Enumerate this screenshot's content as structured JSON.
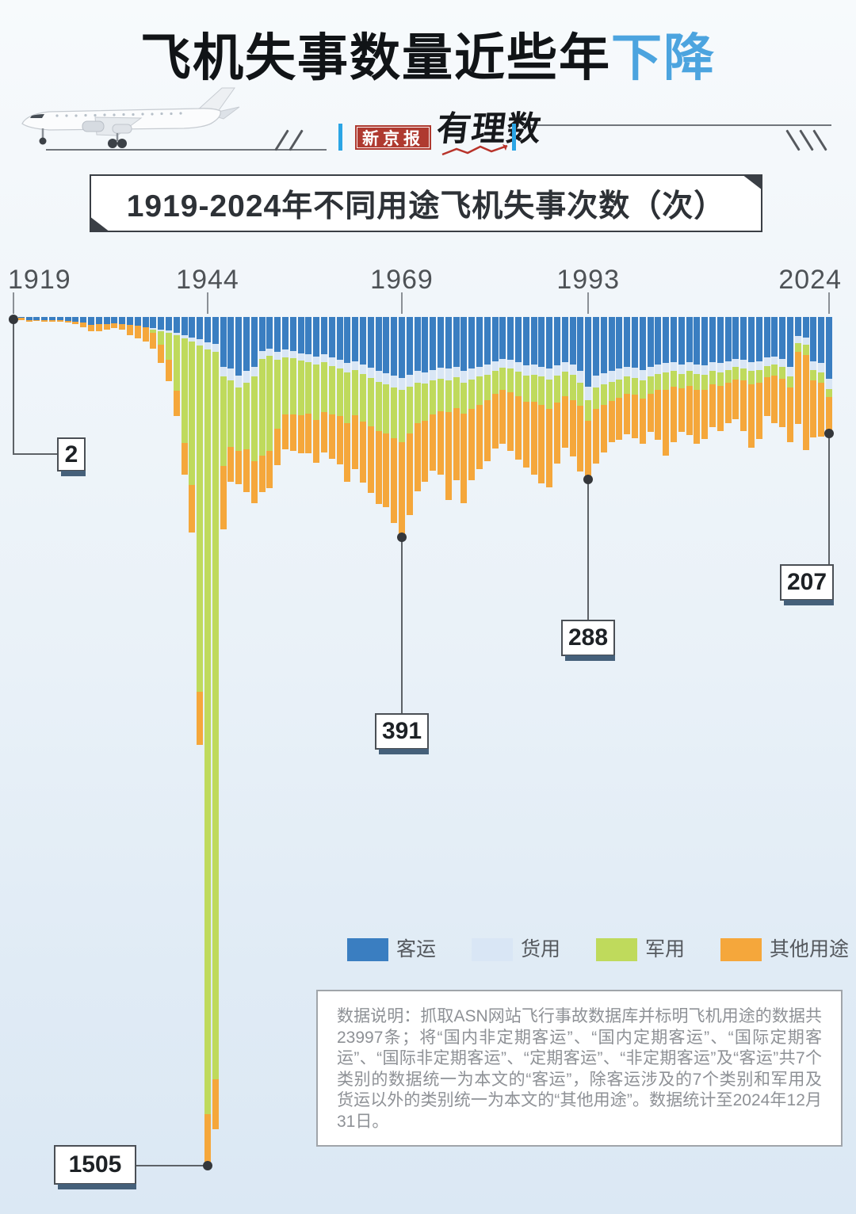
{
  "header": {
    "title_black": "飞机失事数量近些年",
    "title_blue": "下降",
    "brand_left": "新京报",
    "brand_right": "有理数"
  },
  "banner": {
    "title": "1919-2024年不同用途飞机失事次数（次）"
  },
  "chart_data": {
    "type": "bar",
    "stacked": true,
    "orientation": "hanging-from-top",
    "title": "1919-2024年不同用途飞机失事次数（次）",
    "unit": "次",
    "x_axis": {
      "range": [
        1919,
        2024
      ],
      "tick_years": [
        1919,
        1944,
        1969,
        1993,
        2024
      ]
    },
    "years": [
      1919,
      1920,
      1921,
      1922,
      1923,
      1924,
      1925,
      1926,
      1927,
      1928,
      1929,
      1930,
      1931,
      1932,
      1933,
      1934,
      1935,
      1936,
      1937,
      1938,
      1939,
      1940,
      1941,
      1942,
      1943,
      1944,
      1945,
      1946,
      1947,
      1948,
      1949,
      1950,
      1951,
      1952,
      1953,
      1954,
      1955,
      1956,
      1957,
      1958,
      1959,
      1960,
      1961,
      1962,
      1963,
      1964,
      1965,
      1966,
      1967,
      1968,
      1969,
      1970,
      1971,
      1972,
      1973,
      1974,
      1975,
      1976,
      1977,
      1978,
      1979,
      1980,
      1981,
      1982,
      1983,
      1984,
      1985,
      1986,
      1987,
      1988,
      1989,
      1990,
      1991,
      1992,
      1993,
      1994,
      1995,
      1996,
      1997,
      1998,
      1999,
      2000,
      2001,
      2002,
      2003,
      2004,
      2005,
      2006,
      2007,
      2008,
      2009,
      2010,
      2011,
      2012,
      2013,
      2014,
      2015,
      2016,
      2017,
      2018,
      2019,
      2020,
      2021,
      2022,
      2023,
      2024
    ],
    "series": [
      {
        "name": "客运",
        "color": "#3A7EC1",
        "values": [
          2,
          2,
          5,
          5,
          6,
          5,
          6,
          7,
          8,
          10,
          14,
          13,
          12,
          11,
          12,
          14,
          16,
          18,
          20,
          22,
          24,
          28,
          32,
          36,
          40,
          45,
          48,
          88,
          92,
          104,
          96,
          88,
          60,
          56,
          62,
          58,
          60,
          64,
          66,
          70,
          66,
          72,
          76,
          82,
          78,
          84,
          90,
          96,
          100,
          104,
          108,
          102,
          96,
          98,
          94,
          90,
          92,
          88,
          96,
          92,
          88,
          84,
          78,
          74,
          76,
          80,
          86,
          84,
          88,
          92,
          86,
          80,
          84,
          96,
          124,
          104,
          100,
          96,
          92,
          88,
          90,
          94,
          88,
          84,
          82,
          80,
          84,
          80,
          84,
          86,
          80,
          82,
          78,
          74,
          76,
          80,
          78,
          72,
          70,
          74,
          88,
          34,
          36,
          78,
          82,
          110
        ]
      },
      {
        "name": "货用",
        "color": "#D9E6F5",
        "values": [
          0,
          0,
          0,
          0,
          0,
          0,
          0,
          0,
          0,
          0,
          0,
          0,
          0,
          0,
          0,
          0,
          0,
          0,
          2,
          3,
          4,
          5,
          6,
          8,
          10,
          12,
          14,
          18,
          20,
          21,
          20,
          18,
          14,
          13,
          14,
          13,
          13,
          14,
          14,
          15,
          14,
          15,
          16,
          17,
          16,
          17,
          18,
          19,
          20,
          21,
          22,
          21,
          20,
          20,
          19,
          19,
          20,
          19,
          20,
          19,
          18,
          18,
          17,
          16,
          16,
          17,
          18,
          18,
          18,
          19,
          18,
          17,
          18,
          20,
          24,
          21,
          20,
          19,
          19,
          18,
          18,
          19,
          18,
          17,
          17,
          16,
          17,
          16,
          17,
          17,
          16,
          16,
          16,
          15,
          15,
          16,
          16,
          15,
          14,
          15,
          17,
          12,
          13,
          16,
          16,
          18
        ]
      },
      {
        "name": "军用",
        "color": "#BFDA5C",
        "values": [
          0,
          0,
          0,
          0,
          0,
          0,
          0,
          0,
          0,
          0,
          0,
          0,
          0,
          0,
          0,
          0,
          0,
          0,
          6,
          24,
          48,
          98,
          186,
          254,
          614,
          1356,
          1290,
          158,
          118,
          112,
          118,
          150,
          172,
          168,
          122,
          102,
          100,
          96,
          92,
          98,
          88,
          86,
          84,
          90,
          80,
          84,
          86,
          88,
          86,
          90,
          92,
          84,
          72,
          66,
          60,
          58,
          56,
          54,
          56,
          52,
          50,
          46,
          42,
          40,
          42,
          44,
          46,
          48,
          50,
          52,
          48,
          44,
          46,
          42,
          36,
          38,
          36,
          34,
          32,
          30,
          30,
          32,
          30,
          28,
          30,
          28,
          26,
          26,
          28,
          26,
          24,
          24,
          22,
          22,
          22,
          24,
          22,
          20,
          20,
          20,
          20,
          16,
          18,
          18,
          18,
          14
        ]
      },
      {
        "name": "其他用途",
        "color": "#F5A73B",
        "values": [
          0,
          4,
          3,
          2,
          2,
          3,
          3,
          3,
          4,
          8,
          12,
          12,
          10,
          9,
          10,
          18,
          22,
          26,
          28,
          32,
          38,
          44,
          56,
          84,
          95,
          92,
          88,
          112,
          62,
          60,
          76,
          74,
          64,
          67,
          65,
          62,
          65,
          68,
          70,
          76,
          72,
          78,
          86,
          103,
          96,
          109,
          118,
          129,
          132,
          150,
          169,
          144,
          121,
          108,
          99,
          113,
          157,
          128,
          158,
          127,
          114,
          108,
          96,
          95,
          104,
          112,
          117,
          130,
          139,
          139,
          108,
          91,
          100,
          116,
          104,
          97,
          84,
          73,
          75,
          72,
          77,
          80,
          68,
          89,
          117,
          98,
          77,
          88,
          96,
          87,
          75,
          81,
          72,
          71,
          89,
          112,
          101,
          69,
          85,
          86,
          97,
          128,
          169,
          102,
          96,
          65
        ]
      }
    ],
    "annotations": [
      {
        "year": 1919,
        "total": 2,
        "label": "2"
      },
      {
        "year": 1944,
        "total": 1505,
        "label": "1505"
      },
      {
        "year": 1969,
        "total": 391,
        "label": "391"
      },
      {
        "year": 1993,
        "total": 288,
        "label": "288"
      },
      {
        "year": 2024,
        "total": 207,
        "label": "207"
      }
    ],
    "legend_position": "bottom"
  },
  "note": {
    "text": "数据说明：抓取ASN网站飞行事故数据库并标明飞机用途的数据共23997条；将“国内非定期客运”、“国内定期客运”、“国际定期客运”、“国际非定期客运”、“定期客运”、“非定期客运”及“客运”共7个类别的数据统一为本文的“客运”，除客运涉及的7个类别和军用及货运以外的类别统一为本文的“其他用途”。数据统计至2024年12月31日。"
  },
  "colors": {
    "title_highlight": "#4CA4DF",
    "brand_red": "#AF3A30",
    "brand_blue": "#2BA5E5",
    "callout_shadow": "#45607A",
    "dot": "#34373B"
  }
}
